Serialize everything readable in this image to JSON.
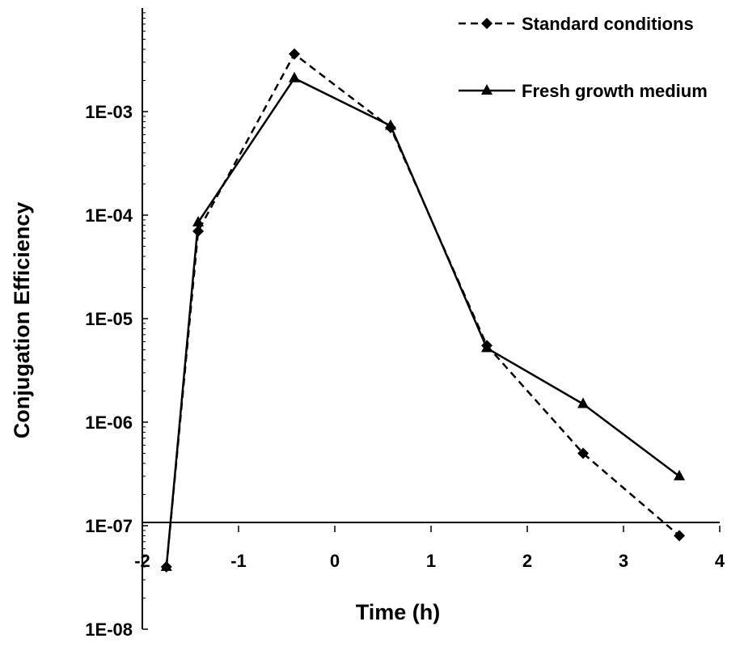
{
  "chart_data": {
    "type": "line",
    "xlabel": "Time (h)",
    "ylabel": "Conjugation Efficiency",
    "xlim": [
      -2,
      4
    ],
    "ylim": [
      1e-08,
      0.01
    ],
    "y_scale": "log",
    "x_axis_crosses_at": 1e-07,
    "x_ticks": [
      "-2",
      "-1",
      "0",
      "1",
      "2",
      "3",
      "4"
    ],
    "y_ticks": [
      "1E-08",
      "1E-07",
      "1E-06",
      "1E-05",
      "1E-04",
      "1E-03"
    ],
    "grid": false,
    "legend_position": "top-right",
    "series": [
      {
        "name": "Standard conditions",
        "line_style": "dashed",
        "marker": "diamond",
        "color": "#000000",
        "x": [
          -1.75,
          -1.42,
          -0.42,
          0.58,
          1.58,
          2.58,
          3.58
        ],
        "y": [
          4e-08,
          7e-05,
          0.0036,
          0.0007,
          5.5e-06,
          5e-07,
          8e-08
        ]
      },
      {
        "name": "Fresh growth medium",
        "line_style": "solid",
        "marker": "triangle",
        "color": "#000000",
        "x": [
          -1.75,
          -1.42,
          -0.42,
          0.58,
          1.58,
          2.58,
          3.58
        ],
        "y": [
          4e-08,
          8.5e-05,
          0.0021,
          0.00073,
          5.2e-06,
          1.5e-06,
          3e-07
        ]
      }
    ]
  }
}
